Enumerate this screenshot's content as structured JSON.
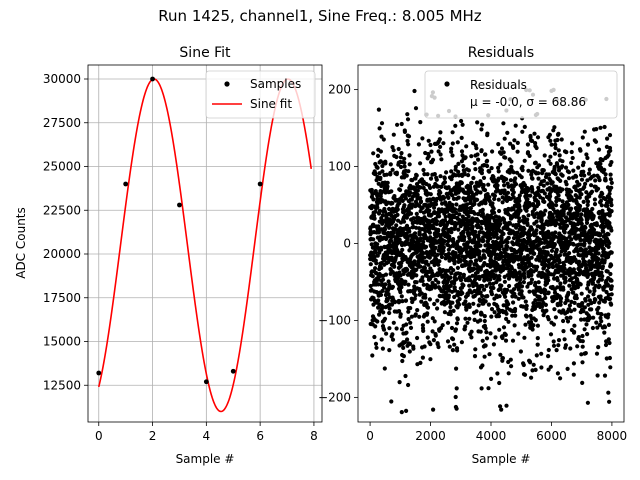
{
  "figure": {
    "title": "Run 1425, channel1, Sine Freq.: 8.005 MHz"
  },
  "chart_data": [
    {
      "type": "line",
      "title": "Sine Fit",
      "xlabel": "Sample #",
      "ylabel": "ADC Counts",
      "xlim": [
        -0.4,
        8.3
      ],
      "ylim": [
        10400,
        30800
      ],
      "xticks": [
        0,
        2,
        4,
        6,
        8
      ],
      "yticks": [
        12500,
        15000,
        17500,
        20000,
        22500,
        25000,
        27500,
        30000
      ],
      "grid": true,
      "legend_position": "top-right",
      "series": [
        {
          "name": "Samples",
          "kind": "scatter",
          "color": "#000000",
          "x": [
            0,
            1,
            2,
            3,
            4,
            5,
            6
          ],
          "y": [
            13200,
            24000,
            30000,
            22800,
            12700,
            13300,
            24000
          ]
        },
        {
          "name": "Sine fit",
          "kind": "line",
          "color": "#ff0000",
          "function": {
            "form": "offset + amplitude * sin(2*pi*x/period + phase)",
            "offset": 20500,
            "amplitude": 9500,
            "period": 4.98,
            "phase": -1.02,
            "x_range": [
              0,
              7.9
            ]
          }
        }
      ]
    },
    {
      "type": "scatter",
      "title": "Residuals",
      "xlabel": "Sample #",
      "ylabel": "",
      "xlim": [
        -400,
        8400
      ],
      "ylim": [
        -232,
        232
      ],
      "xticks": [
        0,
        2000,
        4000,
        6000,
        8000
      ],
      "yticks": [
        -200,
        -100,
        0,
        100,
        200
      ],
      "grid": false,
      "legend_position": "top-right",
      "series": [
        {
          "name": "Residuals",
          "color": "#000000",
          "label_line2": "μ = -0.0, σ = 68.86",
          "n_points": 8000,
          "mean": 0.0,
          "std": 68.86,
          "range": [
            -220,
            200
          ]
        }
      ]
    }
  ]
}
